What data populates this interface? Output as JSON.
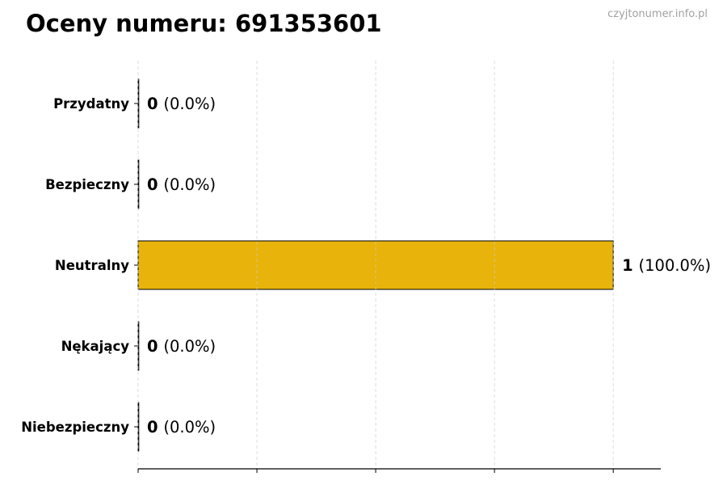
{
  "watermark": "czyjtonumer.info.pl",
  "chart_data": {
    "type": "bar",
    "orientation": "horizontal",
    "title": "Oceny numeru: 691353601",
    "categories": [
      "Przydatny",
      "Bezpieczny",
      "Neutralny",
      "Nękający",
      "Niebezpieczny"
    ],
    "values": [
      0,
      0,
      1,
      0,
      0
    ],
    "percent_labels": [
      "(0.0%)",
      "(0.0%)",
      "(100.0%)",
      "(0.0%)",
      "(0.0%)"
    ],
    "bar_color": "#e8b30a",
    "xlim": [
      0,
      1.1
    ],
    "xticks": [
      0,
      0.25,
      0.5,
      0.75,
      1.0
    ],
    "grid": "x, dashed",
    "xlabel": "",
    "ylabel": ""
  }
}
